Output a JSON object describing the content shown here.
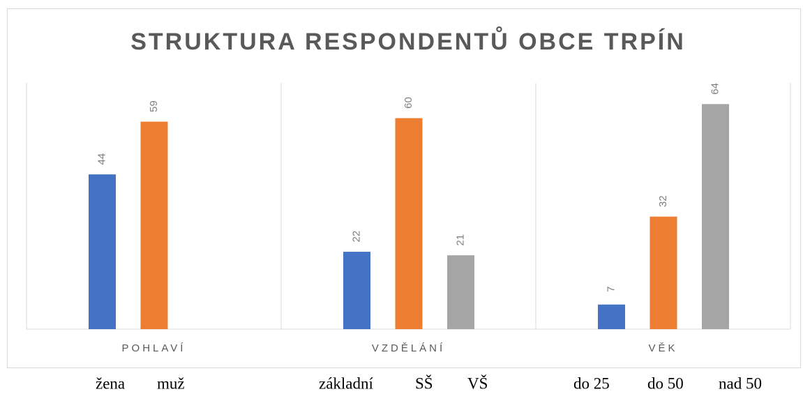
{
  "chart_data": {
    "type": "bar",
    "title": "STRUKTURA RESPONDENTŮ OBCE TRPÍN",
    "categories": [
      "POHLAVÍ",
      "VZDĚLÁNÍ",
      "VĚK"
    ],
    "series": [
      {
        "color": "#4472c4",
        "values": [
          44,
          22,
          7
        ]
      },
      {
        "color": "#ed7d31",
        "values": [
          59,
          60,
          32
        ]
      },
      {
        "color": "#a5a5a5",
        "values": [
          null,
          21,
          64
        ]
      }
    ],
    "ylim": [
      0,
      70
    ],
    "sublabels": [
      [
        "žena",
        "muž"
      ],
      [
        "základní",
        "SŠ",
        "VŠ"
      ],
      [
        "do 25",
        "do 50",
        "nad 50"
      ]
    ]
  }
}
